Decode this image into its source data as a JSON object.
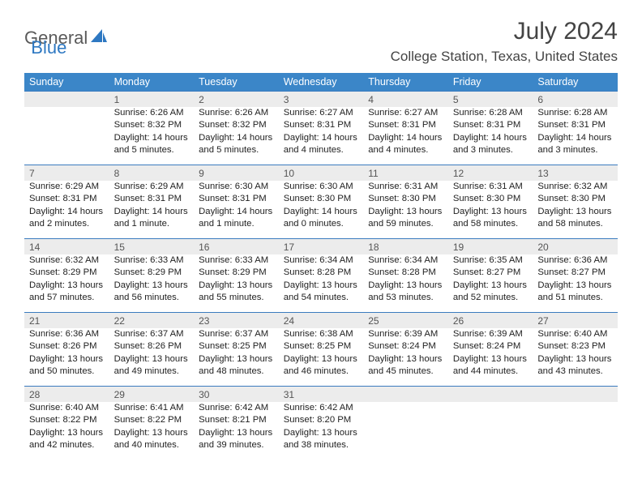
{
  "brand": {
    "word1": "General",
    "word2": "Blue",
    "word2_color": "#2e78c2",
    "icon_color": "#2e78c2"
  },
  "title": {
    "month_year": "July 2024",
    "location": "College Station, Texas, United States"
  },
  "style": {
    "header_bg": "#3b86c8",
    "daynum_bg": "#ececec",
    "row_border": "#3b7bbf"
  },
  "weekdays": [
    "Sunday",
    "Monday",
    "Tuesday",
    "Wednesday",
    "Thursday",
    "Friday",
    "Saturday"
  ],
  "weeks": [
    {
      "nums": [
        "",
        "1",
        "2",
        "3",
        "4",
        "5",
        "6"
      ],
      "cells": [
        "",
        "Sunrise: 6:26 AM\nSunset: 8:32 PM\nDaylight: 14 hours and 5 minutes.",
        "Sunrise: 6:26 AM\nSunset: 8:32 PM\nDaylight: 14 hours and 5 minutes.",
        "Sunrise: 6:27 AM\nSunset: 8:31 PM\nDaylight: 14 hours and 4 minutes.",
        "Sunrise: 6:27 AM\nSunset: 8:31 PM\nDaylight: 14 hours and 4 minutes.",
        "Sunrise: 6:28 AM\nSunset: 8:31 PM\nDaylight: 14 hours and 3 minutes.",
        "Sunrise: 6:28 AM\nSunset: 8:31 PM\nDaylight: 14 hours and 3 minutes."
      ]
    },
    {
      "nums": [
        "7",
        "8",
        "9",
        "10",
        "11",
        "12",
        "13"
      ],
      "cells": [
        "Sunrise: 6:29 AM\nSunset: 8:31 PM\nDaylight: 14 hours and 2 minutes.",
        "Sunrise: 6:29 AM\nSunset: 8:31 PM\nDaylight: 14 hours and 1 minute.",
        "Sunrise: 6:30 AM\nSunset: 8:31 PM\nDaylight: 14 hours and 1 minute.",
        "Sunrise: 6:30 AM\nSunset: 8:30 PM\nDaylight: 14 hours and 0 minutes.",
        "Sunrise: 6:31 AM\nSunset: 8:30 PM\nDaylight: 13 hours and 59 minutes.",
        "Sunrise: 6:31 AM\nSunset: 8:30 PM\nDaylight: 13 hours and 58 minutes.",
        "Sunrise: 6:32 AM\nSunset: 8:30 PM\nDaylight: 13 hours and 58 minutes."
      ]
    },
    {
      "nums": [
        "14",
        "15",
        "16",
        "17",
        "18",
        "19",
        "20"
      ],
      "cells": [
        "Sunrise: 6:32 AM\nSunset: 8:29 PM\nDaylight: 13 hours and 57 minutes.",
        "Sunrise: 6:33 AM\nSunset: 8:29 PM\nDaylight: 13 hours and 56 minutes.",
        "Sunrise: 6:33 AM\nSunset: 8:29 PM\nDaylight: 13 hours and 55 minutes.",
        "Sunrise: 6:34 AM\nSunset: 8:28 PM\nDaylight: 13 hours and 54 minutes.",
        "Sunrise: 6:34 AM\nSunset: 8:28 PM\nDaylight: 13 hours and 53 minutes.",
        "Sunrise: 6:35 AM\nSunset: 8:27 PM\nDaylight: 13 hours and 52 minutes.",
        "Sunrise: 6:36 AM\nSunset: 8:27 PM\nDaylight: 13 hours and 51 minutes."
      ]
    },
    {
      "nums": [
        "21",
        "22",
        "23",
        "24",
        "25",
        "26",
        "27"
      ],
      "cells": [
        "Sunrise: 6:36 AM\nSunset: 8:26 PM\nDaylight: 13 hours and 50 minutes.",
        "Sunrise: 6:37 AM\nSunset: 8:26 PM\nDaylight: 13 hours and 49 minutes.",
        "Sunrise: 6:37 AM\nSunset: 8:25 PM\nDaylight: 13 hours and 48 minutes.",
        "Sunrise: 6:38 AM\nSunset: 8:25 PM\nDaylight: 13 hours and 46 minutes.",
        "Sunrise: 6:39 AM\nSunset: 8:24 PM\nDaylight: 13 hours and 45 minutes.",
        "Sunrise: 6:39 AM\nSunset: 8:24 PM\nDaylight: 13 hours and 44 minutes.",
        "Sunrise: 6:40 AM\nSunset: 8:23 PM\nDaylight: 13 hours and 43 minutes."
      ]
    },
    {
      "nums": [
        "28",
        "29",
        "30",
        "31",
        "",
        "",
        ""
      ],
      "cells": [
        "Sunrise: 6:40 AM\nSunset: 8:22 PM\nDaylight: 13 hours and 42 minutes.",
        "Sunrise: 6:41 AM\nSunset: 8:22 PM\nDaylight: 13 hours and 40 minutes.",
        "Sunrise: 6:42 AM\nSunset: 8:21 PM\nDaylight: 13 hours and 39 minutes.",
        "Sunrise: 6:42 AM\nSunset: 8:20 PM\nDaylight: 13 hours and 38 minutes.",
        "",
        "",
        ""
      ]
    }
  ]
}
